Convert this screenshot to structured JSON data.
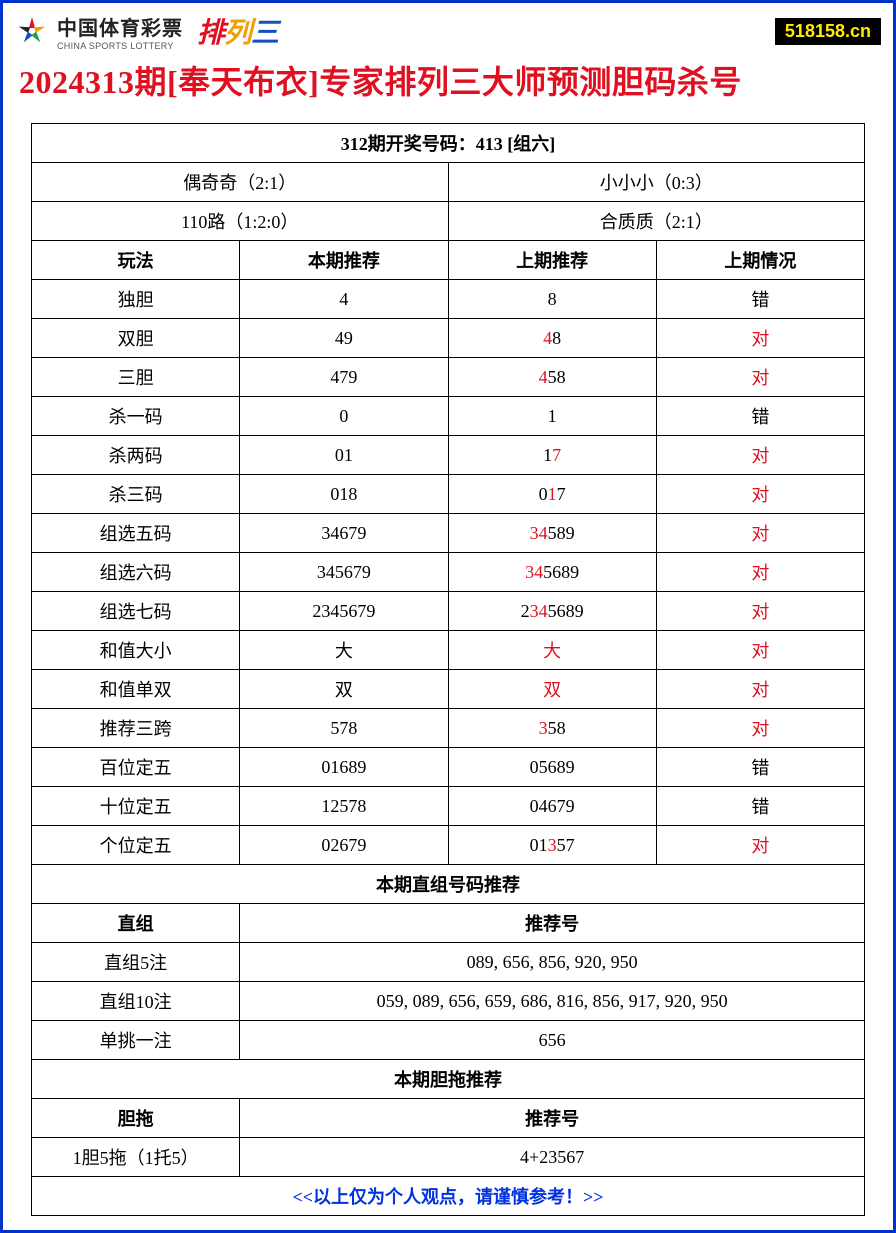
{
  "header": {
    "brand_cn": "中国体育彩票",
    "brand_en": "CHINA SPORTS LOTTERY",
    "pailie": {
      "p": "排",
      "l": "列",
      "s": "三"
    },
    "site": "518158.cn"
  },
  "title": "2024313期[奉天布衣]专家排列三大师预测胆码杀号",
  "draw_header": "312期开奖号码：413 [组六]",
  "summary": {
    "r1c1": "偶奇奇（2:1）",
    "r1c2": "小小小（0:3）",
    "r2c1": "110路（1:2:0）",
    "r2c2": "合质质（2:1）"
  },
  "columns": {
    "c1": "玩法",
    "c2": "本期推荐",
    "c3": "上期推荐",
    "c4": "上期情况"
  },
  "rows": [
    {
      "name": "独胆",
      "cur": "4",
      "prev": [
        [
          "b",
          "8"
        ]
      ],
      "res": "错",
      "res_red": false
    },
    {
      "name": "双胆",
      "cur": "49",
      "prev": [
        [
          "r",
          "4"
        ],
        [
          "b",
          "8"
        ]
      ],
      "res": "对",
      "res_red": true
    },
    {
      "name": "三胆",
      "cur": "479",
      "prev": [
        [
          "r",
          "4"
        ],
        [
          "b",
          "58"
        ]
      ],
      "res": "对",
      "res_red": true
    },
    {
      "name": "杀一码",
      "cur": "0",
      "prev": [
        [
          "b",
          "1"
        ]
      ],
      "res": "错",
      "res_red": false
    },
    {
      "name": "杀两码",
      "cur": "01",
      "prev": [
        [
          "b",
          "1"
        ],
        [
          "r",
          "7"
        ]
      ],
      "res": "对",
      "res_red": true
    },
    {
      "name": "杀三码",
      "cur": "018",
      "prev": [
        [
          "b",
          "0"
        ],
        [
          "r",
          "1"
        ],
        [
          "b",
          "7"
        ]
      ],
      "res": "对",
      "res_red": true
    },
    {
      "name": "组选五码",
      "cur": "34679",
      "prev": [
        [
          "r",
          "34"
        ],
        [
          "b",
          "589"
        ]
      ],
      "res": "对",
      "res_red": true
    },
    {
      "name": "组选六码",
      "cur": "345679",
      "prev": [
        [
          "r",
          "34"
        ],
        [
          "b",
          "5689"
        ]
      ],
      "res": "对",
      "res_red": true
    },
    {
      "name": "组选七码",
      "cur": "2345679",
      "prev": [
        [
          "b",
          "2"
        ],
        [
          "r",
          "34"
        ],
        [
          "b",
          "5689"
        ]
      ],
      "res": "对",
      "res_red": true
    },
    {
      "name": "和值大小",
      "cur": "大",
      "prev": [
        [
          "r",
          "大"
        ]
      ],
      "res": "对",
      "res_red": true
    },
    {
      "name": "和值单双",
      "cur": "双",
      "prev": [
        [
          "r",
          "双"
        ]
      ],
      "res": "对",
      "res_red": true
    },
    {
      "name": "推荐三跨",
      "cur": "578",
      "prev": [
        [
          "r",
          "3"
        ],
        [
          "b",
          "58"
        ]
      ],
      "res": "对",
      "res_red": true
    },
    {
      "name": "百位定五",
      "cur": "01689",
      "prev": [
        [
          "b",
          "05689"
        ]
      ],
      "res": "错",
      "res_red": false
    },
    {
      "name": "十位定五",
      "cur": "12578",
      "prev": [
        [
          "b",
          "04679"
        ]
      ],
      "res": "错",
      "res_red": false
    },
    {
      "name": "个位定五",
      "cur": "02679",
      "prev": [
        [
          "b",
          "01"
        ],
        [
          "r",
          "3"
        ],
        [
          "b",
          "57"
        ]
      ],
      "res": "对",
      "res_red": true
    }
  ],
  "section2_title": "本期直组号码推荐",
  "section2_cols": {
    "c1": "直组",
    "c2": "推荐号"
  },
  "section2_rows": [
    {
      "name": "直组5注",
      "val": "089, 656, 856, 920, 950"
    },
    {
      "name": "直组10注",
      "val": "059, 089, 656, 659, 686, 816, 856, 917, 920, 950"
    },
    {
      "name": "单挑一注",
      "val": "656"
    }
  ],
  "section3_title": "本期胆拖推荐",
  "section3_cols": {
    "c1": "胆拖",
    "c2": "推荐号"
  },
  "section3_rows": [
    {
      "name": "1胆5拖（1托5）",
      "val": "4+23567"
    }
  ],
  "disclaimer": "<<以上仅为个人观点，请谨慎参考！>>",
  "colors": {
    "border": "#0033cc",
    "red": "#e01020",
    "badge_bg": "#000000",
    "badge_fg": "#ffeb00"
  }
}
